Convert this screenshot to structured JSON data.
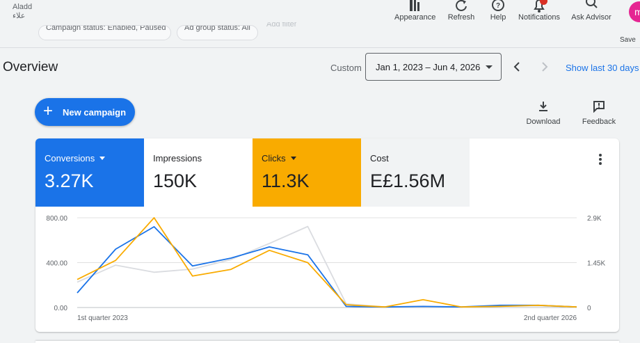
{
  "header": {
    "account_name": "Aladd",
    "account_subtitle": "علاء",
    "tools": [
      {
        "label": "Appearance",
        "icon": "appearance-icon"
      },
      {
        "label": "Refresh",
        "icon": "refresh-icon"
      },
      {
        "label": "Help",
        "icon": "help-icon"
      },
      {
        "label": "Notifications",
        "icon": "bell-icon"
      },
      {
        "label": "Ask Advisor",
        "icon": "search-spark-icon"
      }
    ],
    "avatar_initial": "m",
    "save_label": "Save"
  },
  "filters": {
    "chips": [
      "Campaign status: Enabled, Paused",
      "Ad group status: All"
    ],
    "add_filter": "Add filter"
  },
  "overview": {
    "title": "Overview",
    "date_mode": "Custom",
    "date_range": "Jan 1, 2023 – Jun 4, 2026",
    "show_last": "Show last 30 days"
  },
  "actions": {
    "new_campaign": "New campaign",
    "download": "Download",
    "feedback": "Feedback"
  },
  "metrics": [
    {
      "name": "Conversions",
      "value": "3.27K",
      "dropdown": true,
      "bg": "#1a73e8",
      "fg": "#ffffff"
    },
    {
      "name": "Impressions",
      "value": "150K",
      "dropdown": false,
      "bg": "#ffffff",
      "fg": "#202124"
    },
    {
      "name": "Clicks",
      "value": "11.3K",
      "dropdown": true,
      "bg": "#f9ab00",
      "fg": "#202124"
    },
    {
      "name": "Cost",
      "value": "E£1.56M",
      "dropdown": false,
      "bg": "#f1f3f4",
      "fg": "#202124"
    }
  ],
  "chart_data": {
    "type": "line",
    "left_axis_ticks": [
      "800.00",
      "400.00",
      "0.00"
    ],
    "right_axis_ticks": [
      "2.9K",
      "1.45K",
      "0"
    ],
    "left_ylim": [
      0,
      800
    ],
    "right_ylim": [
      0,
      2900
    ],
    "x_start_label": "1st quarter 2023",
    "x_end_label": "2nd quarter 2026",
    "x": [
      "Q1 2023",
      "Q2 2023",
      "Q3 2023",
      "Q4 2023",
      "Q1 2024",
      "Q2 2024",
      "Q3 2024",
      "Q4 2024",
      "Q1 2025",
      "Q2 2025",
      "Q3 2025",
      "Q4 2025",
      "Q1 2026",
      "Q2 2026"
    ],
    "series": [
      {
        "color": "#1a73e8",
        "axis": "left",
        "values": [
          130,
          520,
          720,
          370,
          440,
          540,
          470,
          10,
          5,
          10,
          5,
          20,
          20,
          5
        ]
      },
      {
        "color": "#f9ab00",
        "axis": "left",
        "values": [
          250,
          420,
          800,
          280,
          340,
          510,
          400,
          25,
          5,
          70,
          5,
          10,
          20,
          5
        ]
      },
      {
        "color": "#dadce0",
        "axis": "right",
        "values": [
          820,
          1370,
          1140,
          1240,
          1550,
          2070,
          2620,
          120,
          20,
          30,
          10,
          40,
          60,
          10
        ]
      }
    ]
  }
}
